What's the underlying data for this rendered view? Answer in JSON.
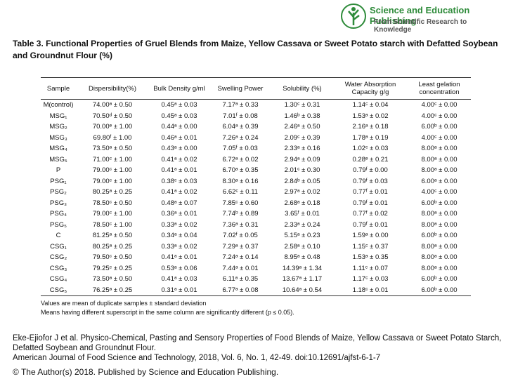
{
  "header": {
    "title": "Science and Education Publishing",
    "subtitle": "From Scientific Research to Knowledge"
  },
  "table": {
    "title": "Table 3. Functional Properties of Gruel Blends from Maize, Yellow Cassava or Sweet Potato starch with Defatted Soybean and Groundnut Flour (%)",
    "columns": [
      "Sample",
      "Dispersibility(%)",
      "Bulk Density g/ml",
      "Swelling Power",
      "Solubility (%)",
      "Water Absorption Capacity g/g",
      "Least gelation concentration"
    ],
    "rows": [
      [
        "M(control)",
        "74.00ᵃ ± 0.50",
        "0.45ᵃ ± 0.03",
        "7.17ᵃ ± 0.33",
        "1.30ᶜ ± 0.31",
        "1.14ᶜ ± 0.04",
        "4.00ᶜ ± 0.00"
      ],
      [
        "MSG₁",
        "70.50ᵈ ± 0.50",
        "0.45ᵃ ± 0.03",
        "7.01ᶠ ± 0.08",
        "1.46ᵇ ± 0.38",
        "1.53ᵃ ± 0.02",
        "4.00ᶜ ± 0.00"
      ],
      [
        "MSG₂",
        "70.00ᵉ ± 1.00",
        "0.44ᵃ ± 0.00",
        "6.04ᵃ ± 0.39",
        "2.46ᵃ ± 0.50",
        "2.16ᵃ ± 0.18",
        "6.00ᵇ ± 0.00"
      ],
      [
        "MSG₃",
        "69.80ᶠ ± 1.00",
        "0.46ᵃ ± 0.01",
        "7.26ᵃ ± 0.24",
        "2.09ᶜ ± 0.39",
        "1.78ᵃ ± 0.19",
        "4.00ᶜ ± 0.00"
      ],
      [
        "MSG₄",
        "73.50ᵃ ± 0.50",
        "0.43ᵃ ± 0.00",
        "7.05ᶠ ± 0.03",
        "2.33ᵃ ± 0.16",
        "1.02ᶜ ± 0.03",
        "8.00ᵃ ± 0.00"
      ],
      [
        "MSG₅",
        "71.00ᶜ ± 1.00",
        "0.41ᵃ ± 0.02",
        "6.72ᵃ ± 0.02",
        "2.94ᵃ ± 0.09",
        "0.28ᵉ ± 0.21",
        "8.00ᵃ ± 0.00"
      ],
      [
        "P",
        "79.00ᶜ ± 1.00",
        "0.41ᵃ ± 0.01",
        "6.70ᵃ ± 0.35",
        "2.01ᶜ ± 0.30",
        "0.79ᶠ ± 0.00",
        "8.00ᵃ ± 0.00"
      ],
      [
        "PSG₁",
        "79.00ᶜ ± 1.00",
        "0.38ᶜ ± 0.03",
        "8.30ᵃ ± 0.16",
        "2.84ᵇ ± 0.05",
        "0.79ᶠ ± 0.03",
        "6.00ᵃ ± 0.00"
      ],
      [
        "PSG₂",
        "80.25ᵃ ± 0.25",
        "0.41ᵃ ± 0.02",
        "6.62ᶜ ± 0.11",
        "2.97ᵃ ± 0.02",
        "0.77ᶠ ± 0.01",
        "4.00ᶜ ± 0.00"
      ],
      [
        "PSG₃",
        "78.50ᶜ ± 0.50",
        "0.48ᵃ ± 0.07",
        "7.85ᶜ ± 0.60",
        "2.68ᵃ ± 0.18",
        "0.79ᶠ ± 0.01",
        "6.00ᵇ ± 0.00"
      ],
      [
        "PSG₄",
        "79.00ᶜ ± 1.00",
        "0.36ᵃ ± 0.01",
        "7.74ᵇ ± 0.89",
        "3.65ᶠ ± 0.01",
        "0.77ᶠ ± 0.02",
        "8.00ᵃ ± 0.00"
      ],
      [
        "PSG₅",
        "78.50ᶜ ± 1.00",
        "0.33ᵃ ± 0.02",
        "7.36ᵃ ± 0.31",
        "2.33ᵃ ± 0.24",
        "0.79ᶠ ± 0.01",
        "8.00ᵃ ± 0.00"
      ],
      [
        "C",
        "81.25ᵃ ± 0.50",
        "0.34ᵃ ± 0.04",
        "7.02ᶠ ± 0.05",
        "5.15ᵃ ± 0.23",
        "1.59ᵃ ± 0.00",
        "6.00ᵇ ± 0.00"
      ],
      [
        "CSG₁",
        "80.25ᵃ ± 0.25",
        "0.33ᵃ ± 0.02",
        "7.29ᵃ ± 0.37",
        "2.58ᵃ ± 0.10",
        "1.15ᶜ ± 0.37",
        "8.00ᵃ ± 0.00"
      ],
      [
        "CSG₂",
        "79.50ᶜ ± 0.50",
        "0.41ᵃ ± 0.01",
        "7.24ᵃ ± 0.14",
        "8.95ᵃ ± 0.48",
        "1.53ᵃ ± 0.35",
        "8.00ᵃ ± 0.00"
      ],
      [
        "CSG₃",
        "79.25ᶜ ± 0.25",
        "0.53ᵃ ± 0.06",
        "7.44ᵃ ± 0.01",
        "14.39ᵃ ± 1.34",
        "1.11ᶜ ± 0.07",
        "8.00ᵃ ± 0.00"
      ],
      [
        "CSG₄",
        "73.50ᵃ ± 0.50",
        "0.41ᵃ ± 0.03",
        "6.11ᵃ ± 0.35",
        "13.67ᵃ ± 1.17",
        "1.17ᶜ ± 0.03",
        "6.00ᵇ ± 0.00"
      ],
      [
        "CSG₅",
        "76.25ᵃ ± 0.25",
        "0.31ᵃ ± 0.01",
        "6.77ᵃ ± 0.08",
        "10.64ᵃ ± 0.54",
        "1.18ᶜ ± 0.01",
        "6.00ᵇ ± 0.00"
      ]
    ],
    "notes": [
      "Values are mean of duplicate samples ± standard deviation",
      "Means having different superscript in the same column are significantly different (p ≤ 0.05)."
    ]
  },
  "citation": [
    "Eke-Ejiofor J et al. Physico-Chemical, Pasting and Sensory Properties of Food Blends of Maize, Yellow Cassava or Sweet Potato Starch, Defatted Soybean and Groundnut Flour.",
    "American Journal of Food Science and Technology, 2018, Vol. 6, No. 1, 42-49. doi:10.12691/ajfst-6-1-7"
  ],
  "copyright": "© The Author(s) 2018. Published by Science and Education Publishing."
}
